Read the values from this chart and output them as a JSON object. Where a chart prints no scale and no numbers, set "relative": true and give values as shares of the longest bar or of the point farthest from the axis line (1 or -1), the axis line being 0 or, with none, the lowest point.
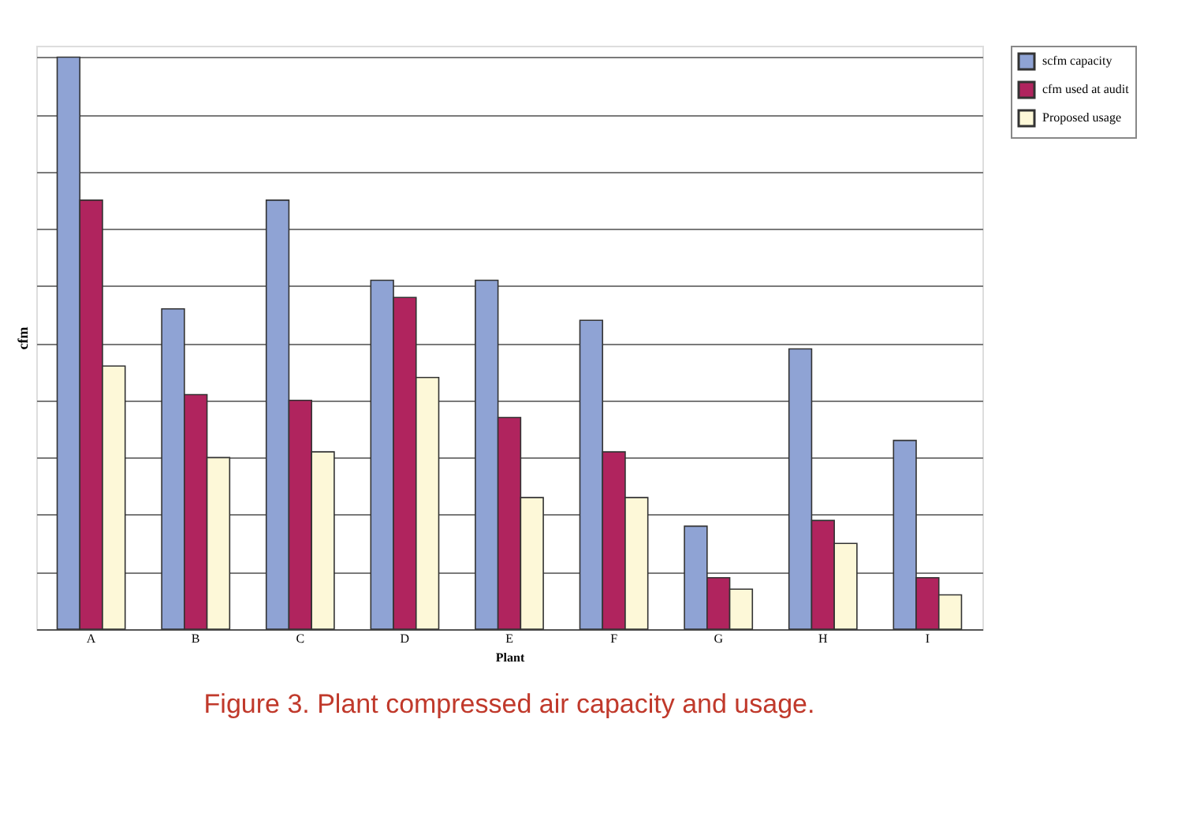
{
  "chart_data": {
    "type": "bar",
    "title": "Figure 3. Plant compressed air capacity and usage.",
    "xlabel": "Plant",
    "ylabel": "cfm",
    "categories": [
      "A",
      "B",
      "C",
      "D",
      "E",
      "F",
      "G",
      "H",
      "I"
    ],
    "relative": true,
    "grid": "y",
    "legend": "right",
    "series": [
      {
        "name": "scfm capacity",
        "color": "#8fa3d4",
        "values": [
          1,
          0.56,
          0.75,
          0.61,
          0.61,
          0.54,
          0.18,
          0.49,
          0.33
        ]
      },
      {
        "name": "cfm used at audit",
        "color": "#b0245e",
        "values": [
          0.75,
          0.41,
          0.4,
          0.58,
          0.37,
          0.31,
          0.09,
          0.19,
          0.09
        ]
      },
      {
        "name": "Proposed usage",
        "color": "#fdf8d8",
        "values": [
          0.46,
          0.3,
          0.31,
          0.44,
          0.23,
          0.23,
          0.07,
          0.15,
          0.06
        ]
      }
    ]
  }
}
